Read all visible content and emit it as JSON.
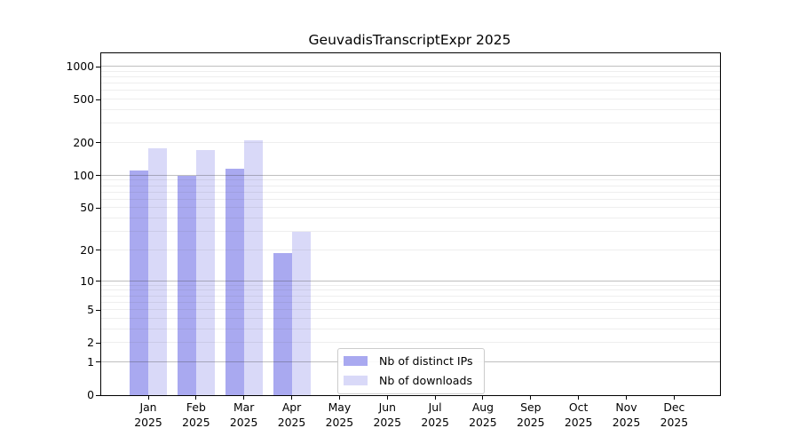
{
  "chart_data": {
    "type": "bar",
    "title": "GeuvadisTranscriptExpr 2025",
    "categories": [
      "Jan 2025",
      "Feb 2025",
      "Mar 2025",
      "Apr 2025",
      "May 2025",
      "Jun 2025",
      "Jul 2025",
      "Aug 2025",
      "Sep 2025",
      "Oct 2025",
      "Nov 2025",
      "Dec 2025"
    ],
    "series": [
      {
        "name": "Nb of distinct IPs",
        "color": "#a9a9f0",
        "values": [
          112,
          99,
          115,
          19,
          0,
          0,
          0,
          0,
          0,
          0,
          0,
          0
        ]
      },
      {
        "name": "Nb of downloads",
        "color": "#d9d9f8",
        "values": [
          180,
          172,
          213,
          30,
          0,
          0,
          0,
          0,
          0,
          0,
          0,
          0
        ]
      }
    ],
    "xlabel": "",
    "ylabel": "",
    "yscale": "log10(1+y)",
    "ylim": [
      0,
      1325
    ],
    "yticks": [
      0,
      1,
      2,
      5,
      10,
      20,
      50,
      100,
      200,
      500,
      1000
    ],
    "major_gridlines": [
      1,
      10,
      100,
      1000
    ],
    "minor_gridlines": [
      2,
      3,
      4,
      5,
      6,
      7,
      8,
      9,
      20,
      30,
      40,
      50,
      60,
      70,
      80,
      90,
      200,
      300,
      400,
      500,
      600,
      700,
      800,
      900
    ],
    "grid": "horizontal only, minors faint, drawn over bars",
    "legend_position": "lower center-left inside axes",
    "colors": {
      "frame": "#000000",
      "background": "#ffffff",
      "major_grid": "#bbbbbb",
      "minor_grid": "#e9e9e9"
    }
  }
}
